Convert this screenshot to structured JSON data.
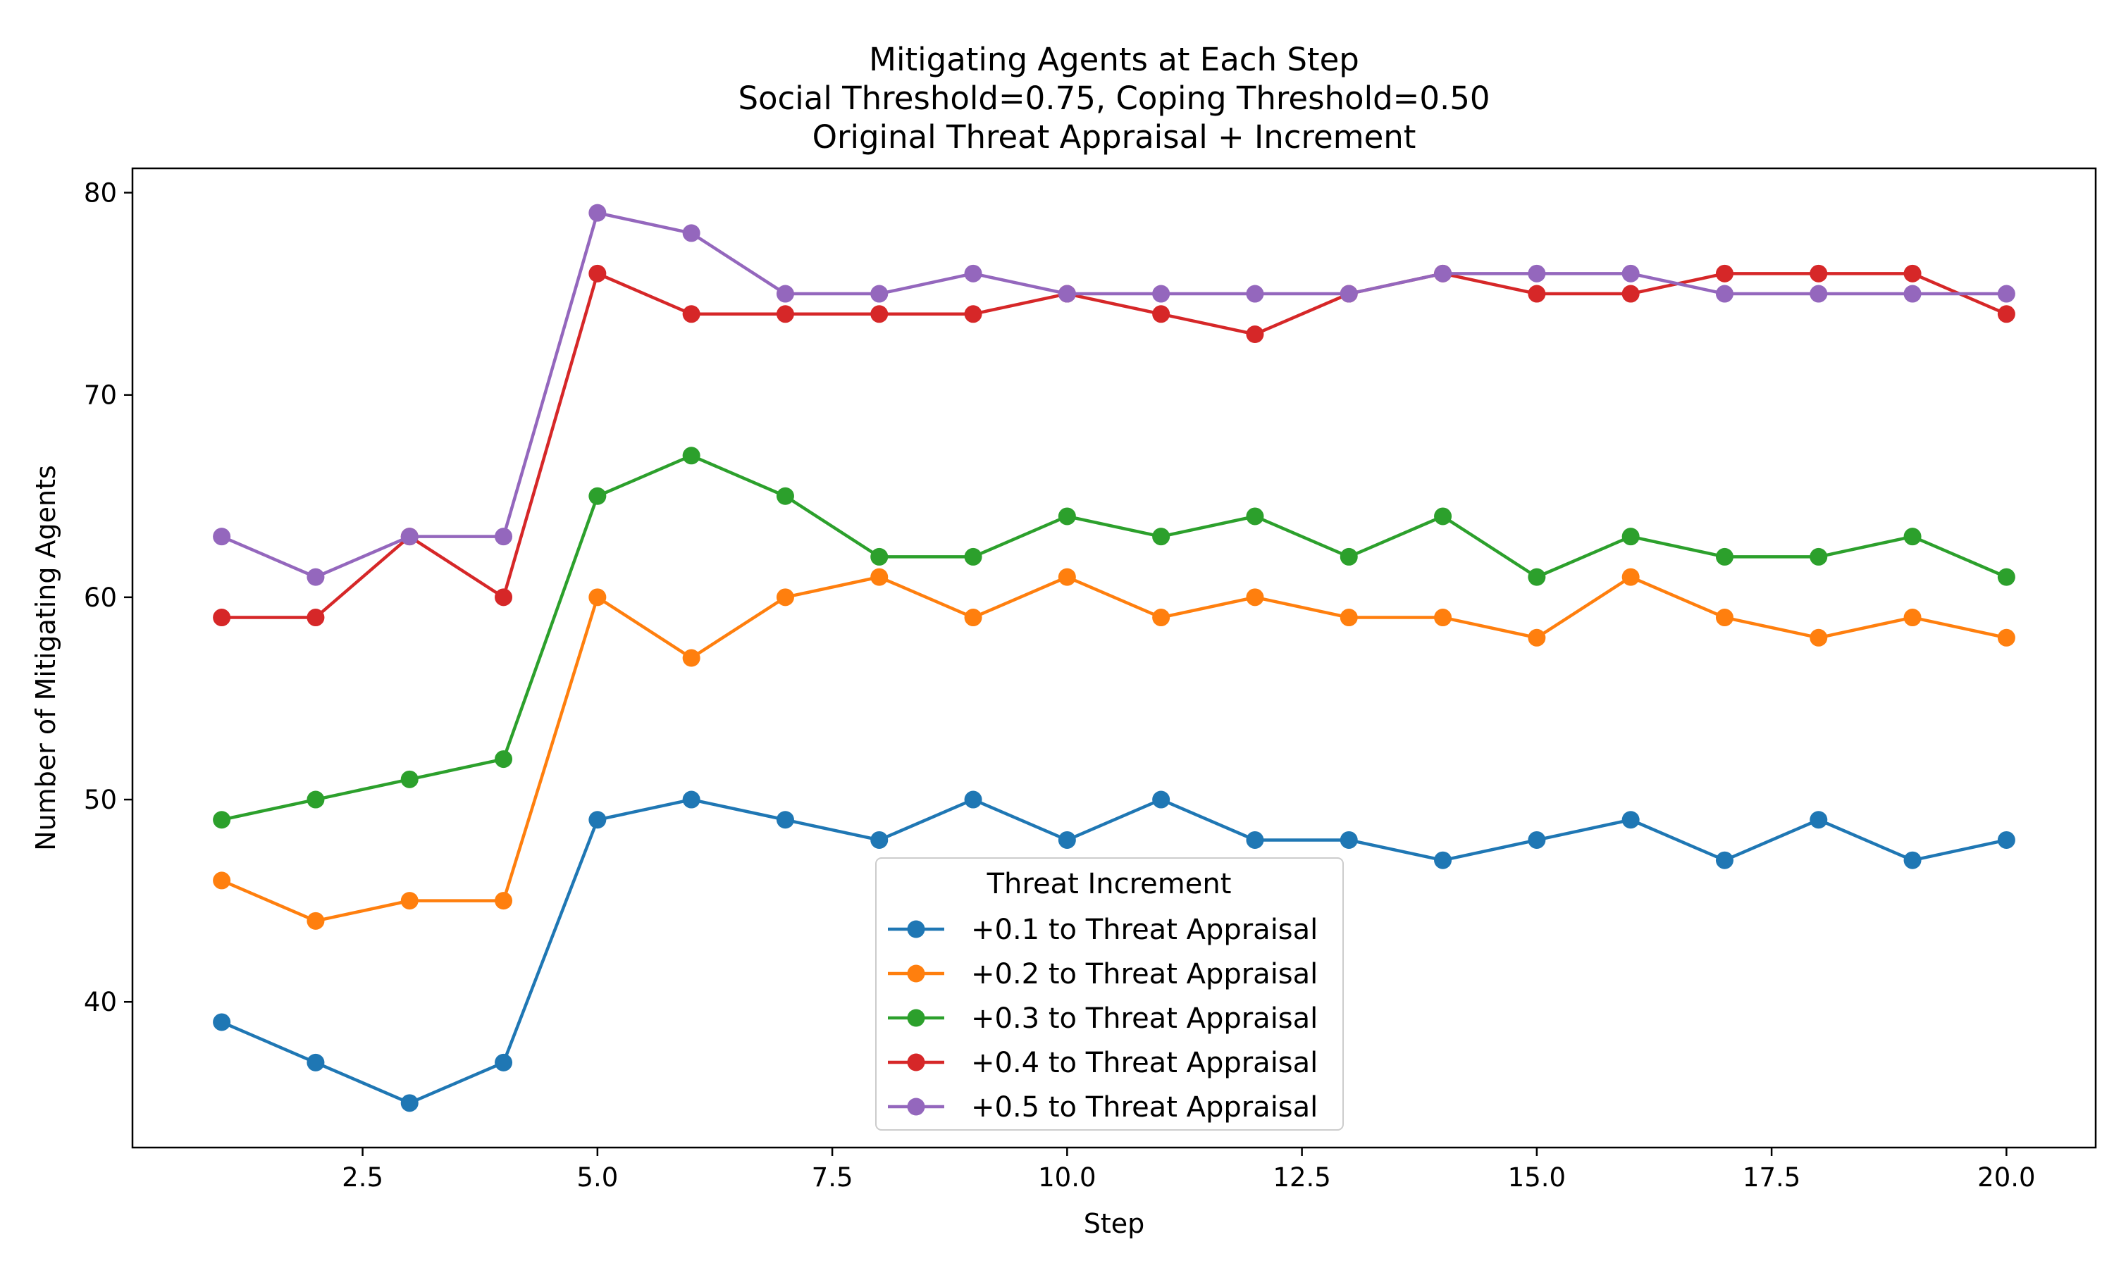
{
  "chart_data": {
    "type": "line",
    "title_lines": [
      "Mitigating Agents at Each Step",
      "Social Threshold=0.75, Coping Threshold=0.50",
      "Original Threat Appraisal + Increment"
    ],
    "xlabel": "Step",
    "ylabel": "Number of Mitigating Agents",
    "xlim": [
      0.05,
      20.95
    ],
    "ylim": [
      32.8,
      81.2
    ],
    "xticks": [
      2.5,
      5.0,
      7.5,
      10.0,
      12.5,
      15.0,
      17.5,
      20.0
    ],
    "xtick_labels": [
      "2.5",
      "5.0",
      "7.5",
      "10.0",
      "12.5",
      "15.0",
      "17.5",
      "20.0"
    ],
    "yticks": [
      40,
      50,
      60,
      70,
      80
    ],
    "ytick_labels": [
      "40",
      "50",
      "60",
      "70",
      "80"
    ],
    "grid": false,
    "legend_title": "Threat Increment",
    "legend_position": "lower center",
    "marker": "circle",
    "x": [
      1,
      2,
      3,
      4,
      5,
      6,
      7,
      8,
      9,
      10,
      11,
      12,
      13,
      14,
      15,
      16,
      17,
      18,
      19,
      20
    ],
    "series": [
      {
        "name": "+0.1 to Threat Appraisal",
        "color": "#1f77b4",
        "values": [
          39,
          37,
          35,
          37,
          49,
          50,
          49,
          48,
          50,
          48,
          50,
          48,
          48,
          47,
          48,
          49,
          47,
          49,
          47,
          48
        ]
      },
      {
        "name": "+0.2 to Threat Appraisal",
        "color": "#ff7f0e",
        "values": [
          46,
          44,
          45,
          45,
          60,
          57,
          60,
          61,
          59,
          61,
          59,
          60,
          59,
          59,
          58,
          61,
          59,
          58,
          59,
          58
        ]
      },
      {
        "name": "+0.3 to Threat Appraisal",
        "color": "#2ca02c",
        "values": [
          49,
          50,
          51,
          52,
          65,
          67,
          65,
          62,
          62,
          64,
          63,
          64,
          62,
          64,
          61,
          63,
          62,
          62,
          63,
          61
        ]
      },
      {
        "name": "+0.4 to Threat Appraisal",
        "color": "#d62728",
        "values": [
          59,
          59,
          63,
          60,
          76,
          74,
          74,
          74,
          74,
          75,
          74,
          73,
          75,
          76,
          75,
          75,
          76,
          76,
          76,
          74
        ]
      },
      {
        "name": "+0.5 to Threat Appraisal",
        "color": "#9467bd",
        "values": [
          63,
          61,
          63,
          63,
          79,
          78,
          75,
          75,
          76,
          75,
          75,
          75,
          75,
          76,
          76,
          76,
          75,
          75,
          75,
          75
        ]
      }
    ]
  }
}
